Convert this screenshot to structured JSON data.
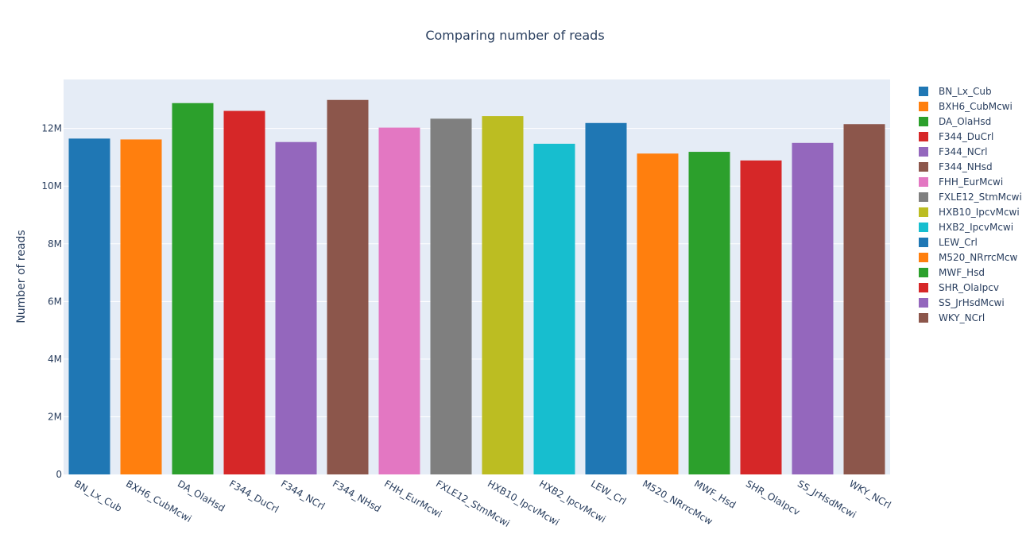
{
  "chart_data": {
    "type": "bar",
    "title": "Comparing number of reads",
    "ylabel": "Number of reads",
    "xlabel": "",
    "ylim": [
      0,
      13700000
    ],
    "yticks": [
      0,
      2000000,
      4000000,
      6000000,
      8000000,
      10000000,
      12000000
    ],
    "ytick_labels": [
      "0",
      "2M",
      "4M",
      "6M",
      "8M",
      "10M",
      "12M"
    ],
    "legend_position": "right",
    "grid": true,
    "plot_background": "#e5ecf6",
    "categories": [
      "BN_Lx_Cub",
      "BXH6_CubMcwi",
      "DA_OlaHsd",
      "F344_DuCrl",
      "F344_NCrl",
      "F344_NHsd",
      "FHH_EurMcwi",
      "FXLE12_StmMcwi",
      "HXB10_IpcvMcwi",
      "HXB2_IpcvMcwi",
      "LEW_Crl",
      "M520_NRrrcMcw",
      "MWF_Hsd",
      "SHR_OlaIpcv",
      "SS_JrHsdMcwi",
      "WKY_NCrl"
    ],
    "values": [
      11650000,
      11620000,
      12880000,
      12610000,
      11530000,
      12990000,
      12030000,
      12340000,
      12430000,
      11470000,
      12190000,
      11130000,
      11190000,
      10890000,
      11500000,
      12150000
    ],
    "colors": [
      "#1f77b4",
      "#ff7f0e",
      "#2ca02c",
      "#d62728",
      "#9467bd",
      "#8c564b",
      "#e377c2",
      "#7f7f7f",
      "#bcbd22",
      "#17becf",
      "#1f77b4",
      "#ff7f0e",
      "#2ca02c",
      "#d62728",
      "#9467bd",
      "#8c564b"
    ],
    "legend": [
      "BN_Lx_Cub",
      "BXH6_CubMcwi",
      "DA_OlaHsd",
      "F344_DuCrl",
      "F344_NCrl",
      "F344_NHsd",
      "FHH_EurMcwi",
      "FXLE12_StmMcwi",
      "HXB10_IpcvMcwi",
      "HXB2_IpcvMcwi",
      "LEW_Crl",
      "M520_NRrrcMcw",
      "MWF_Hsd",
      "SHR_OlaIpcv",
      "SS_JrHsdMcwi",
      "WKY_NCrl"
    ]
  }
}
